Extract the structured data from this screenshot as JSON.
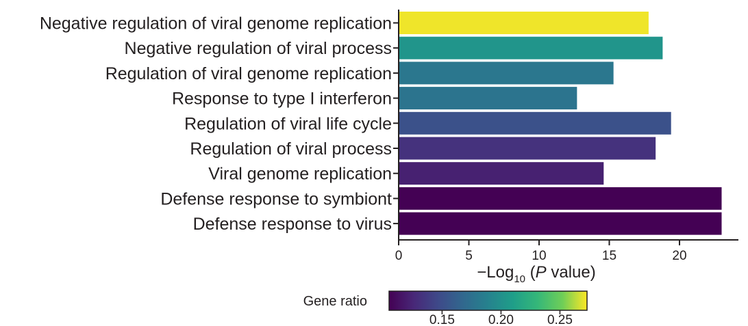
{
  "chart_data": {
    "type": "bar",
    "orientation": "horizontal",
    "categories": [
      "Negative regulation of viral genome replication",
      "Negative regulation of viral process",
      "Regulation of viral genome replication",
      "Response to type I interferon",
      "Regulation of viral life cycle",
      "Regulation of viral process",
      "Viral genome replication",
      "Defense response to symbiont",
      "Defense response to virus"
    ],
    "values": [
      17.8,
      18.8,
      15.3,
      12.7,
      19.4,
      18.3,
      14.6,
      23.0,
      23.0
    ],
    "gene_ratio": [
      0.271,
      0.203,
      0.18,
      0.178,
      0.152,
      0.132,
      0.122,
      0.105,
      0.105
    ],
    "xlabel": {
      "prefix": "−Log",
      "subscript": "10",
      "paren_open": " (",
      "italic": "P",
      "suffix": " value)"
    },
    "xlim": [
      0,
      24
    ],
    "xticks": [
      0,
      5,
      10,
      15,
      20
    ],
    "ylabel": "",
    "grid": false,
    "colorbar": {
      "title": "Gene ratio",
      "colormap": "viridis",
      "range": [
        0.105,
        0.273
      ],
      "ticks": [
        0.15,
        0.2,
        0.25
      ],
      "tick_labels": [
        "0.15",
        "0.20",
        "0.25"
      ]
    }
  }
}
